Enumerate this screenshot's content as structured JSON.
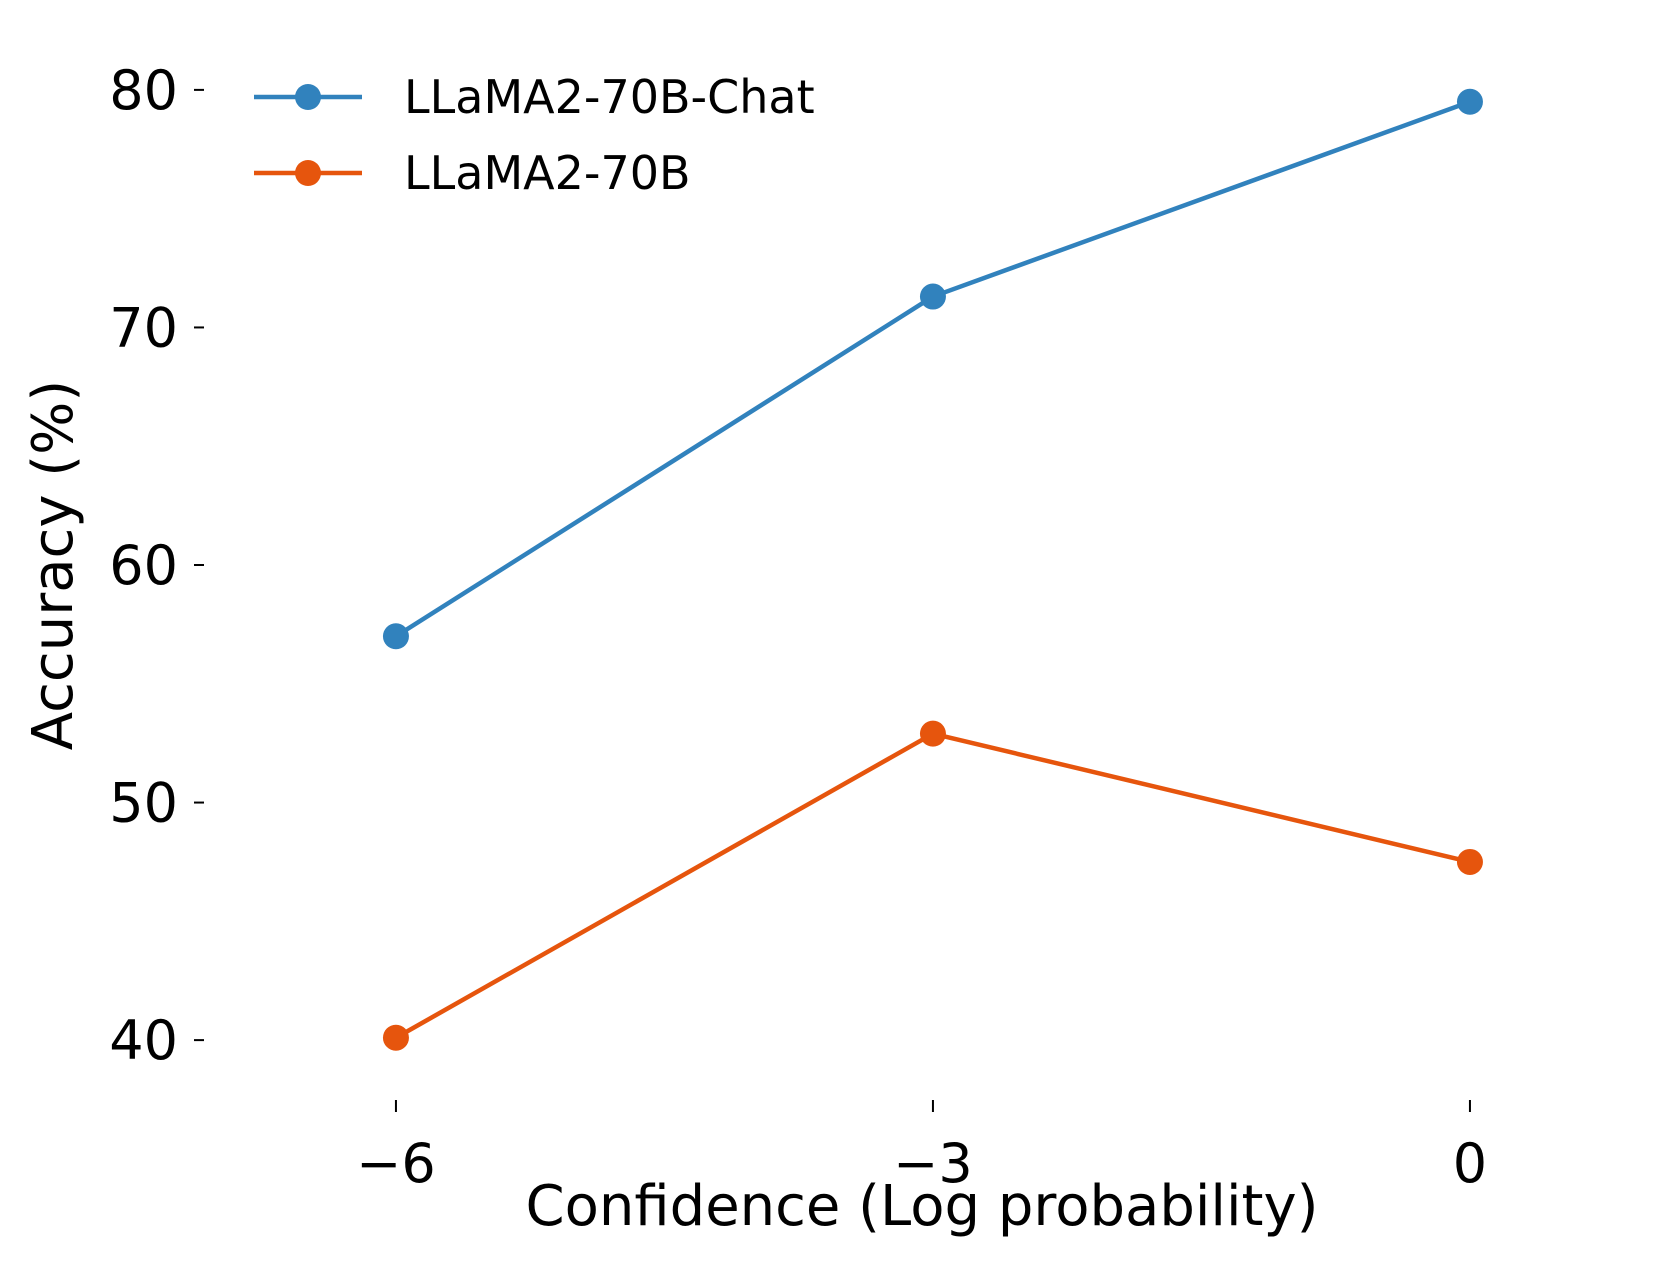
{
  "chart_data": {
    "type": "line",
    "title": "",
    "xlabel": "Confidence (Log probability)",
    "ylabel": "Accuracy (%)",
    "x": [
      -6,
      -3,
      0
    ],
    "x_tick_labels": [
      "−6",
      "−3",
      "0"
    ],
    "y_ticks": [
      40,
      50,
      60,
      70,
      80
    ],
    "y_tick_labels": [
      "40",
      "50",
      "60",
      "70",
      "80"
    ],
    "xlim": [
      -7.05,
      0.95
    ],
    "ylim": [
      37.9,
      82.1
    ],
    "grid": false,
    "legend_position": "top-left",
    "series": [
      {
        "name": "LLaMA2-70B-Chat",
        "color": "#3182bd",
        "values": [
          57.0,
          71.3,
          79.5
        ]
      },
      {
        "name": "LLaMA2-70B",
        "color": "#e6550d",
        "values": [
          40.1,
          52.9,
          47.5
        ]
      }
    ]
  }
}
